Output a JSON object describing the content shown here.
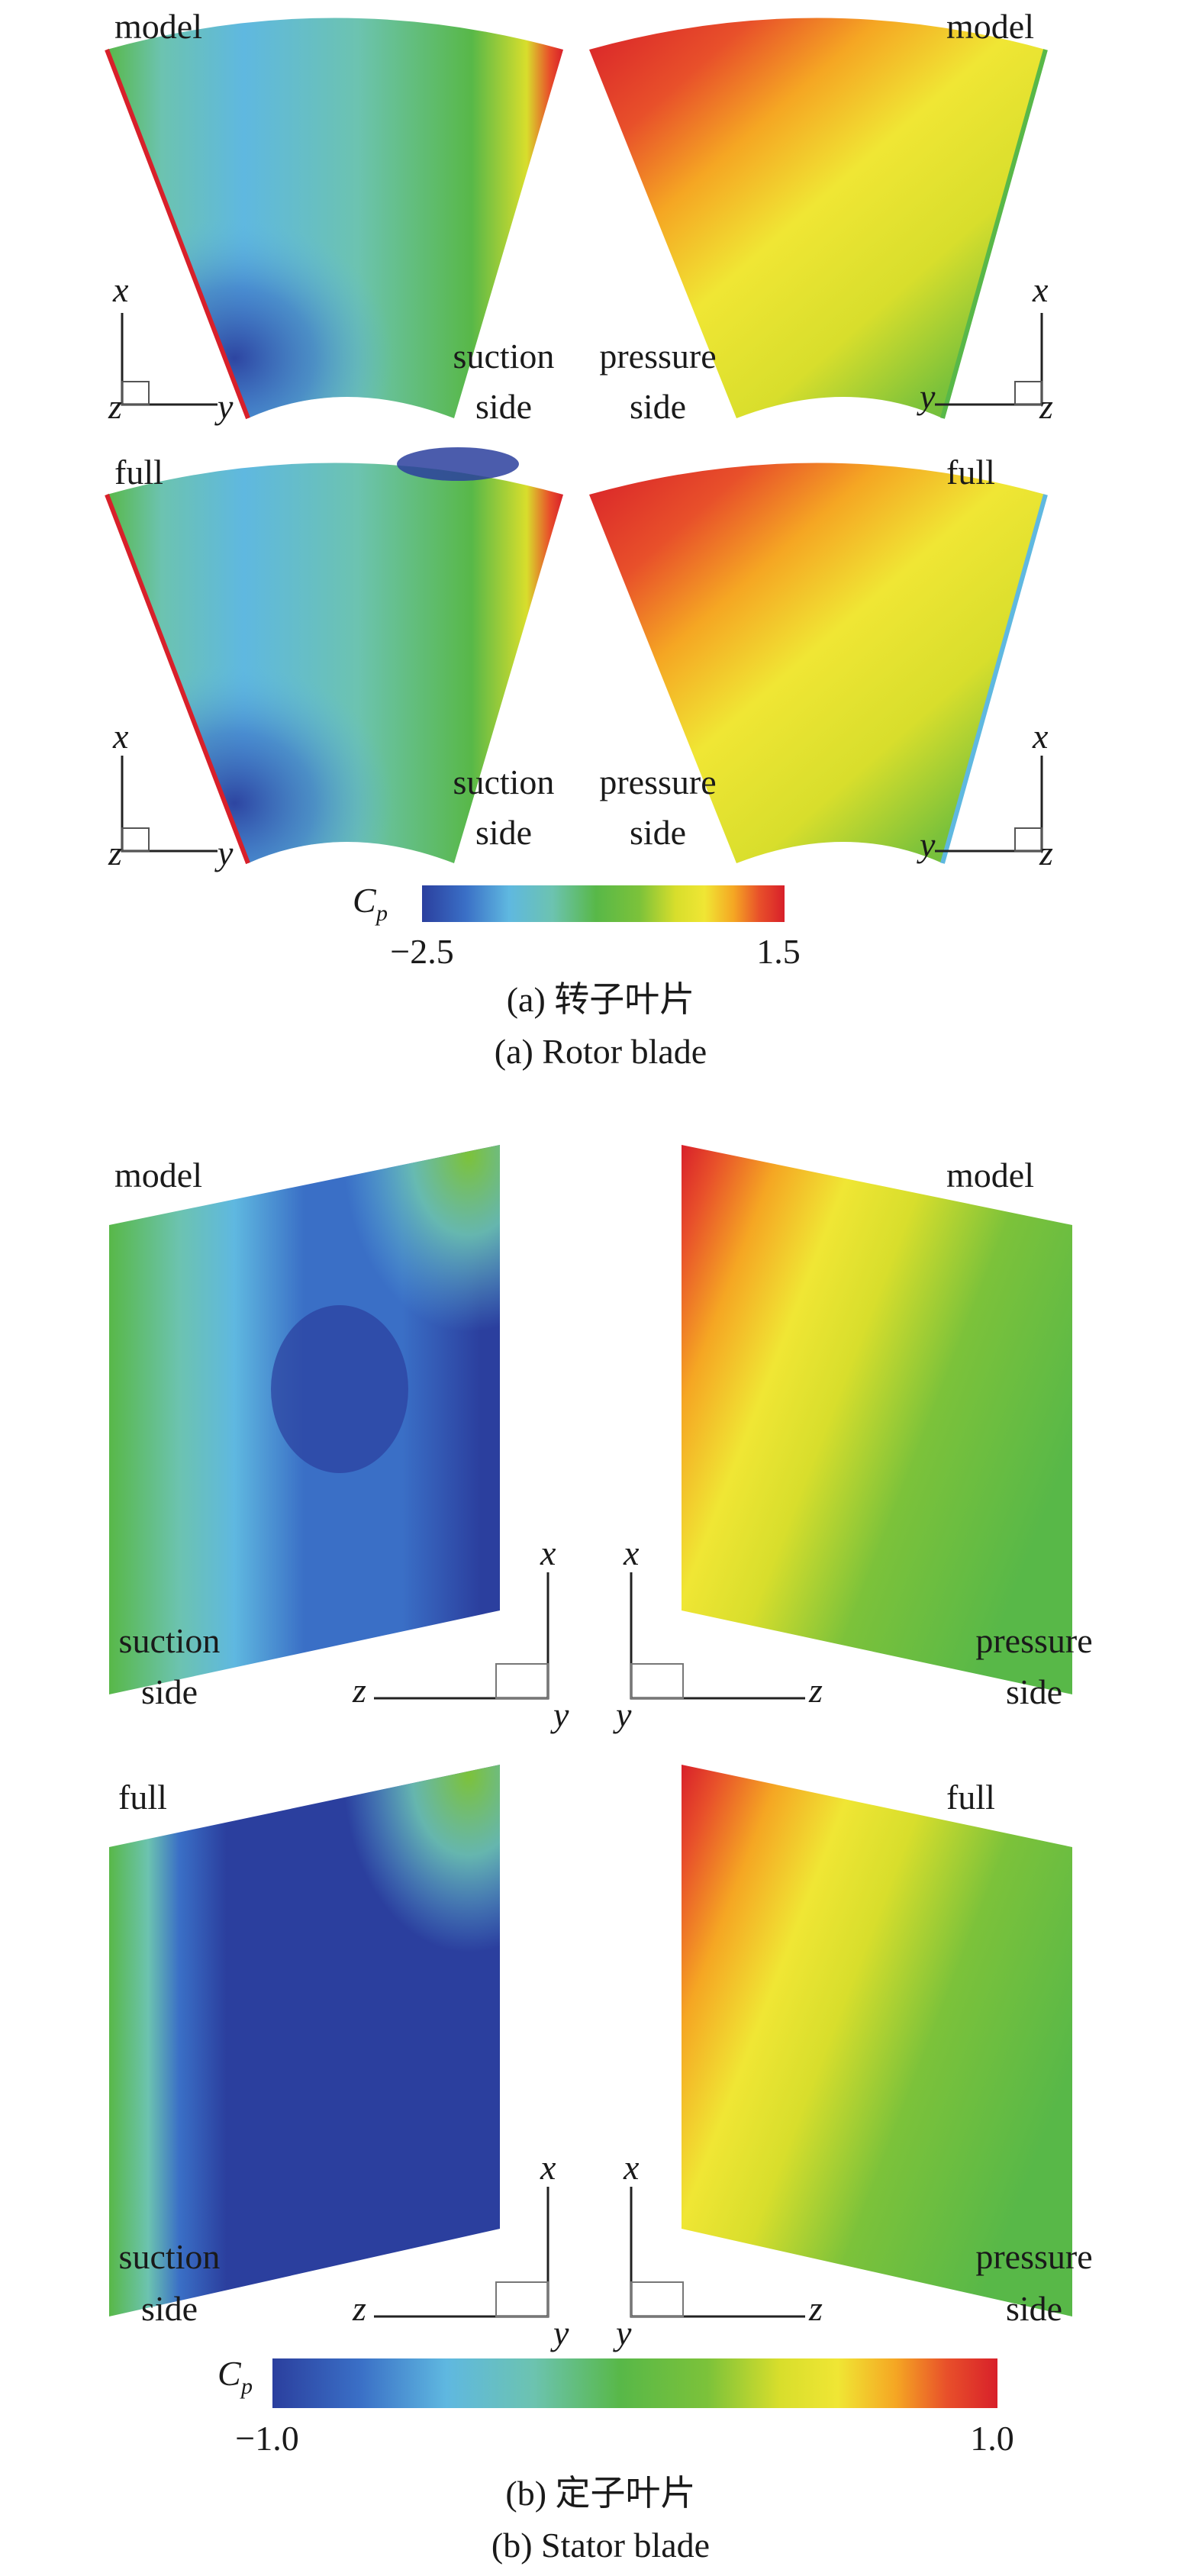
{
  "rotor": {
    "model_left_label": "model",
    "model_right_label": "model",
    "full_left_label": "full",
    "full_right_label": "full",
    "suction_label_1": "suction",
    "suction_label_2": "side",
    "pressure_label_1": "pressure",
    "pressure_label_2": "side",
    "axis_x": "x",
    "axis_y": "y",
    "axis_z": "z",
    "colorbar_symbol": "C",
    "colorbar_symbol_sub": "p",
    "colorbar_min": "−2.5",
    "colorbar_max": "1.5",
    "caption_cn": "(a) 转子叶片",
    "caption_en": "(a) Rotor blade"
  },
  "stator": {
    "model_left_label": "model",
    "model_right_label": "model",
    "full_left_label": "full",
    "full_right_label": "full",
    "suction_label_1": "suction",
    "suction_label_2": "side",
    "pressure_label_1": "pressure",
    "pressure_label_2": "side",
    "axis_x": "x",
    "axis_y": "y",
    "axis_z": "z",
    "colorbar_symbol": "C",
    "colorbar_symbol_sub": "p",
    "colorbar_min": "−1.0",
    "colorbar_max": "1.0",
    "caption_cn": "(b) 定子叶片",
    "caption_en": "(b) Stator blade"
  },
  "colors": {
    "jet_stops": [
      "#2b3f9e",
      "#3a6fc6",
      "#5fb8e0",
      "#6cc3b0",
      "#58b848",
      "#7cc23a",
      "#d8de2c",
      "#f0e634",
      "#f5a623",
      "#e8502a",
      "#d8202a"
    ]
  }
}
